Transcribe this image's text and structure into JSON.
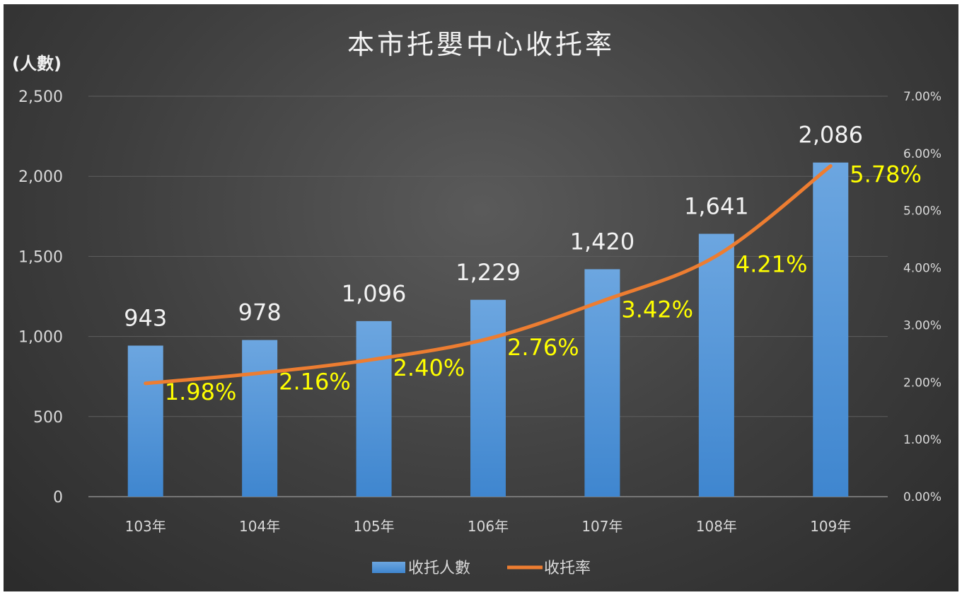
{
  "chart_data": {
    "type": "bar",
    "title": "本市托嬰中心收托率",
    "y_left_unit_label": "(人數)",
    "categories": [
      "103年",
      "104年",
      "105年",
      "106年",
      "107年",
      "108年",
      "109年"
    ],
    "series": [
      {
        "name": "收托人數",
        "type": "bar",
        "axis": "left",
        "color": "#5b9bd5",
        "values": [
          943,
          978,
          1096,
          1229,
          1420,
          1641,
          2086
        ],
        "value_labels": [
          "943",
          "978",
          "1,096",
          "1,229",
          "1,420",
          "1,641",
          "2,086"
        ]
      },
      {
        "name": "收托率",
        "type": "line",
        "axis": "right",
        "color": "#ed7d31",
        "values": [
          1.98,
          2.16,
          2.4,
          2.76,
          3.42,
          4.21,
          5.78
        ],
        "value_labels": [
          "1.98%",
          "2.16%",
          "2.40%",
          "2.76%",
          "3.42%",
          "4.21%",
          "5.78%"
        ]
      }
    ],
    "y_left": {
      "min": 0,
      "max": 2500,
      "ticks": [
        "0",
        "500",
        "1,000",
        "1,500",
        "2,000",
        "2,500"
      ]
    },
    "y_right": {
      "min": 0,
      "max": 7,
      "ticks": [
        "0.00%",
        "1.00%",
        "2.00%",
        "3.00%",
        "4.00%",
        "5.00%",
        "6.00%",
        "7.00%"
      ]
    },
    "grid": true,
    "legend_position": "bottom",
    "label_colors": {
      "bar_label": "#f2f2f2",
      "rate_label": "#ffff00"
    }
  }
}
